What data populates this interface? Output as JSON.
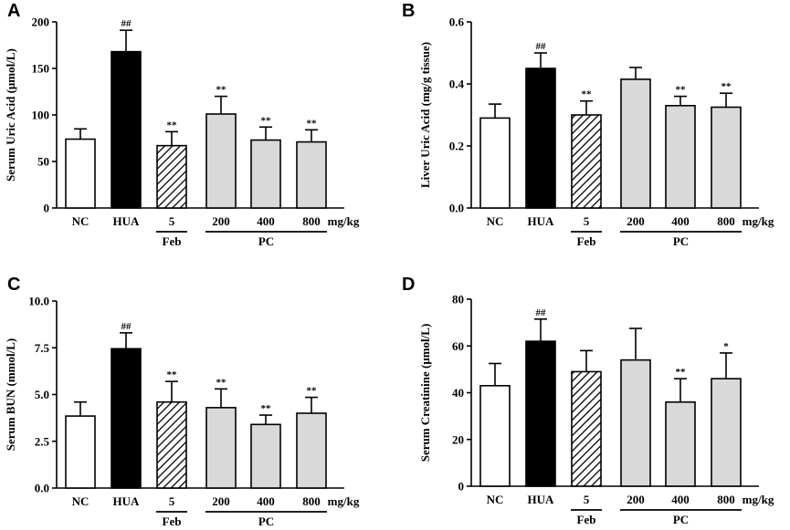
{
  "style": {
    "bar_colors": {
      "white": "#ffffff",
      "black": "#000000",
      "hatch": "#ffffff",
      "gray": "#d9d9d9"
    },
    "ink": "#000000"
  },
  "chart_data": [
    {
      "panel": "A",
      "type": "bar",
      "ylabel": "Serum Uric Acid (μmol/L)",
      "ylim": [
        0,
        200
      ],
      "yticks": [
        "0",
        "50",
        "100",
        "150",
        "200"
      ],
      "yticks_values": [
        0,
        50,
        100,
        150,
        200
      ],
      "categories": [
        "NC",
        "HUA",
        "5",
        "200",
        "400",
        "800"
      ],
      "unit_label": "mg/kg",
      "groups": [
        {
          "label": "Feb",
          "from": 2,
          "to": 2
        },
        {
          "label": "PC",
          "from": 3,
          "to": 5
        }
      ],
      "values": [
        74,
        168,
        67,
        101,
        73,
        71
      ],
      "errors": [
        11,
        23,
        15,
        19,
        14,
        13
      ],
      "fills": [
        "white",
        "black",
        "hatch",
        "gray",
        "gray",
        "gray"
      ],
      "annotations": [
        "",
        "##",
        "**",
        "**",
        "**",
        "**"
      ]
    },
    {
      "panel": "B",
      "type": "bar",
      "ylabel": "Liver Uric Acid (mg/g tissue)",
      "ylim": [
        0,
        0.6
      ],
      "yticks": [
        "0.0",
        "0.2",
        "0.4",
        "0.6"
      ],
      "yticks_values": [
        0,
        0.2,
        0.4,
        0.6
      ],
      "categories": [
        "NC",
        "HUA",
        "5",
        "200",
        "400",
        "800"
      ],
      "unit_label": "mg/kg",
      "groups": [
        {
          "label": "Feb",
          "from": 2,
          "to": 2
        },
        {
          "label": "PC",
          "from": 3,
          "to": 5
        }
      ],
      "values": [
        0.29,
        0.45,
        0.3,
        0.415,
        0.33,
        0.325
      ],
      "errors": [
        0.045,
        0.05,
        0.045,
        0.038,
        0.03,
        0.045
      ],
      "fills": [
        "white",
        "black",
        "hatch",
        "gray",
        "gray",
        "gray"
      ],
      "annotations": [
        "",
        "##",
        "**",
        "",
        "**",
        "**"
      ]
    },
    {
      "panel": "C",
      "type": "bar",
      "ylabel": "Serum BUN (mmol/L)",
      "ylim": [
        0,
        10
      ],
      "yticks": [
        "0.0",
        "2.5",
        "5.0",
        "7.5",
        "10.0"
      ],
      "yticks_values": [
        0,
        2.5,
        5,
        7.5,
        10
      ],
      "categories": [
        "NC",
        "HUA",
        "5",
        "200",
        "400",
        "800"
      ],
      "unit_label": "mg/kg",
      "groups": [
        {
          "label": "Feb",
          "from": 2,
          "to": 2
        },
        {
          "label": "PC",
          "from": 3,
          "to": 5
        }
      ],
      "values": [
        3.85,
        7.45,
        4.6,
        4.3,
        3.4,
        4.0
      ],
      "errors": [
        0.75,
        0.85,
        1.1,
        1.0,
        0.5,
        0.85
      ],
      "fills": [
        "white",
        "black",
        "hatch",
        "gray",
        "gray",
        "gray"
      ],
      "annotations": [
        "",
        "##",
        "**",
        "**",
        "**",
        "**"
      ]
    },
    {
      "panel": "D",
      "type": "bar",
      "ylabel": "Serum Creatinine (μmol/L)",
      "ylim": [
        0,
        80
      ],
      "yticks": [
        "0",
        "20",
        "40",
        "60",
        "80"
      ],
      "yticks_values": [
        0,
        20,
        40,
        60,
        80
      ],
      "categories": [
        "NC",
        "HUA",
        "5",
        "200",
        "400",
        "800"
      ],
      "unit_label": "mg/kg",
      "groups": [
        {
          "label": "Feb",
          "from": 2,
          "to": 2
        },
        {
          "label": "PC",
          "from": 3,
          "to": 5
        }
      ],
      "values": [
        43,
        62,
        49,
        54,
        36,
        46
      ],
      "errors": [
        9.5,
        9.5,
        9,
        13.5,
        10,
        11
      ],
      "fills": [
        "white",
        "black",
        "hatch",
        "gray",
        "gray",
        "gray"
      ],
      "annotations": [
        "",
        "##",
        "",
        "",
        "**",
        "*"
      ]
    }
  ]
}
